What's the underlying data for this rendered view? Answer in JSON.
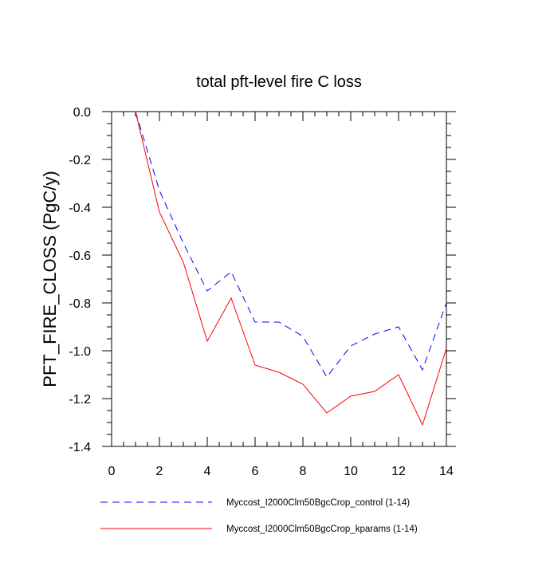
{
  "chart_data": {
    "type": "line",
    "title": "total pft-level fire C loss",
    "xlabel": "",
    "ylabel": "PFT_FIRE_CLOSS  (PgC/y)",
    "xlim": [
      0,
      14
    ],
    "ylim": [
      -1.4,
      0.0
    ],
    "x_ticks": [
      0,
      2,
      4,
      6,
      8,
      10,
      12,
      14
    ],
    "x_tick_labels": [
      "0",
      "2",
      "4",
      "6",
      "8",
      "10",
      "12",
      "14"
    ],
    "y_ticks": [
      0.0,
      -0.2,
      -0.4,
      -0.6,
      -0.8,
      -1.0,
      -1.2,
      -1.4
    ],
    "y_tick_labels": [
      "0.0",
      "-0.2",
      "-0.4",
      "-0.6",
      "-0.8",
      "-1.0",
      "-1.2",
      "-1.4"
    ],
    "grid": false,
    "legend_position": "bottom",
    "x": [
      1,
      2,
      3,
      4,
      5,
      6,
      7,
      8,
      9,
      10,
      11,
      12,
      13,
      14
    ],
    "series": [
      {
        "name": "Myccost_I2000Clm50BgcCrop_control (1-14)",
        "color": "#0000ff",
        "dash": "dashed",
        "values": [
          0.0,
          -0.33,
          -0.55,
          -0.75,
          -0.67,
          -0.88,
          -0.88,
          -0.94,
          -1.11,
          -0.98,
          -0.93,
          -0.9,
          -1.08,
          -0.8
        ]
      },
      {
        "name": "Myccost_I2000Clm50BgcCrop_kparams (1-14)",
        "color": "#ff0000",
        "dash": "solid",
        "values": [
          0.0,
          -0.42,
          -0.63,
          -0.96,
          -0.78,
          -1.06,
          -1.09,
          -1.14,
          -1.26,
          -1.19,
          -1.17,
          -1.1,
          -1.31,
          -0.99
        ]
      }
    ]
  }
}
